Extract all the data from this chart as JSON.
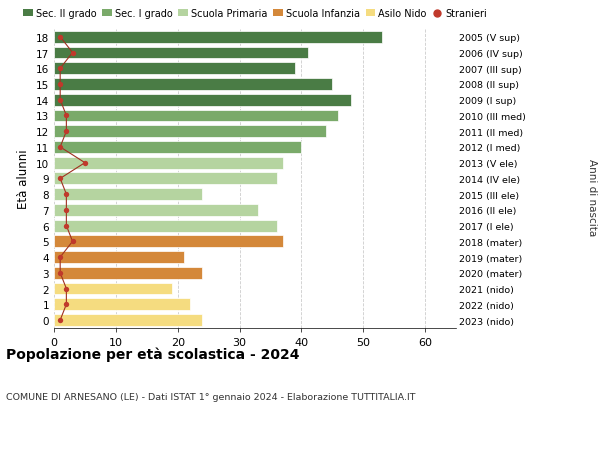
{
  "ages": [
    18,
    17,
    16,
    15,
    14,
    13,
    12,
    11,
    10,
    9,
    8,
    7,
    6,
    5,
    4,
    3,
    2,
    1,
    0
  ],
  "bar_values": [
    53,
    41,
    39,
    45,
    48,
    46,
    44,
    40,
    37,
    36,
    24,
    33,
    36,
    37,
    21,
    24,
    19,
    22,
    24
  ],
  "stranieri": [
    1,
    3,
    1,
    1,
    1,
    2,
    2,
    1,
    5,
    1,
    2,
    2,
    2,
    3,
    1,
    1,
    2,
    2,
    1
  ],
  "right_labels": [
    "2005 (V sup)",
    "2006 (IV sup)",
    "2007 (III sup)",
    "2008 (II sup)",
    "2009 (I sup)",
    "2010 (III med)",
    "2011 (II med)",
    "2012 (I med)",
    "2013 (V ele)",
    "2014 (IV ele)",
    "2015 (III ele)",
    "2016 (II ele)",
    "2017 (I ele)",
    "2018 (mater)",
    "2019 (mater)",
    "2020 (mater)",
    "2021 (nido)",
    "2022 (nido)",
    "2023 (nido)"
  ],
  "bar_colors": [
    "#4a7c45",
    "#4a7c45",
    "#4a7c45",
    "#4a7c45",
    "#4a7c45",
    "#7aaa6a",
    "#7aaa6a",
    "#7aaa6a",
    "#b5d4a0",
    "#b5d4a0",
    "#b5d4a0",
    "#b5d4a0",
    "#b5d4a0",
    "#d4883a",
    "#d4883a",
    "#d4883a",
    "#f5dc80",
    "#f5dc80",
    "#f5dc80"
  ],
  "legend_labels": [
    "Sec. II grado",
    "Sec. I grado",
    "Scuola Primaria",
    "Scuola Infanzia",
    "Asilo Nido",
    "Stranieri"
  ],
  "legend_colors": [
    "#4a7c45",
    "#7aaa6a",
    "#b5d4a0",
    "#d4883a",
    "#f5dc80",
    "#c0392b"
  ],
  "title": "Popolazione per età scolastica - 2024",
  "subtitle": "COMUNE DI ARNESANO (LE) - Dati ISTAT 1° gennaio 2024 - Elaborazione TUTTITALIA.IT",
  "ylabel": "Età alunni",
  "ylabel2": "Anni di nascita",
  "xlim": [
    0,
    65
  ],
  "background_color": "#ffffff",
  "grid_color": "#cccccc",
  "bar_height": 0.75
}
